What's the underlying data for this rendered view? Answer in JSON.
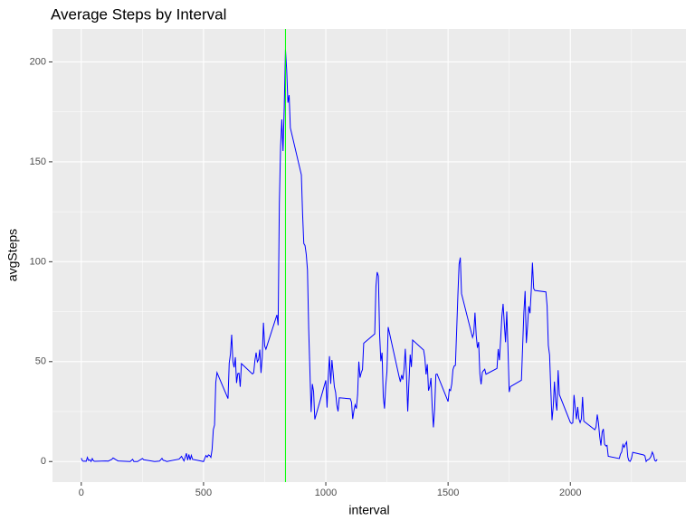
{
  "chart_data": {
    "type": "line",
    "title": "Average Steps by Interval",
    "xlabel": "interval",
    "ylabel": "avgSteps",
    "x": [
      0,
      5,
      10,
      15,
      20,
      25,
      30,
      35,
      40,
      45,
      50,
      55,
      100,
      110,
      125,
      130,
      150,
      200,
      210,
      215,
      230,
      250,
      255,
      300,
      320,
      330,
      335,
      340,
      350,
      400,
      410,
      420,
      430,
      435,
      440,
      445,
      450,
      455,
      500,
      505,
      510,
      515,
      520,
      525,
      530,
      535,
      540,
      545,
      550,
      555,
      600,
      605,
      610,
      615,
      620,
      625,
      630,
      635,
      640,
      645,
      650,
      655,
      700,
      705,
      710,
      715,
      720,
      725,
      730,
      735,
      740,
      745,
      750,
      755,
      800,
      805,
      810,
      815,
      820,
      825,
      830,
      835,
      840,
      845,
      850,
      855,
      900,
      905,
      910,
      915,
      920,
      925,
      930,
      935,
      940,
      945,
      950,
      955,
      1000,
      1005,
      1010,
      1015,
      1020,
      1025,
      1030,
      1035,
      1040,
      1045,
      1050,
      1055,
      1100,
      1105,
      1110,
      1115,
      1120,
      1125,
      1130,
      1135,
      1140,
      1145,
      1150,
      1155,
      1200,
      1205,
      1210,
      1215,
      1220,
      1225,
      1230,
      1235,
      1240,
      1245,
      1250,
      1255,
      1300,
      1305,
      1310,
      1315,
      1320,
      1325,
      1330,
      1335,
      1340,
      1345,
      1350,
      1355,
      1400,
      1405,
      1410,
      1415,
      1420,
      1425,
      1430,
      1435,
      1440,
      1445,
      1450,
      1455,
      1500,
      1505,
      1510,
      1515,
      1520,
      1525,
      1530,
      1535,
      1540,
      1545,
      1550,
      1555,
      1600,
      1605,
      1610,
      1615,
      1620,
      1625,
      1630,
      1635,
      1640,
      1645,
      1650,
      1655,
      1700,
      1705,
      1710,
      1715,
      1720,
      1725,
      1730,
      1735,
      1740,
      1745,
      1750,
      1755,
      1800,
      1805,
      1810,
      1815,
      1820,
      1825,
      1830,
      1835,
      1840,
      1845,
      1850,
      1855,
      1900,
      1905,
      1910,
      1915,
      1920,
      1925,
      1930,
      1935,
      1940,
      1945,
      1950,
      1955,
      2000,
      2005,
      2010,
      2015,
      2020,
      2025,
      2030,
      2035,
      2040,
      2045,
      2050,
      2055,
      2100,
      2105,
      2110,
      2115,
      2120,
      2125,
      2130,
      2135,
      2140,
      2145,
      2150,
      2155,
      2200,
      2205,
      2210,
      2215,
      2220,
      2225,
      2230,
      2235,
      2240,
      2245,
      2250,
      2255,
      2300,
      2305,
      2310,
      2315,
      2320,
      2325,
      2330,
      2335,
      2340,
      2345,
      2350,
      2355
    ],
    "values": [
      1.7,
      0.3,
      0.1,
      0.2,
      0.1,
      2.1,
      0.5,
      0.9,
      0,
      1.5,
      0.3,
      0.1,
      0.3,
      0.2,
      1.1,
      1.8,
      0.3,
      0,
      1.1,
      0,
      0,
      1.5,
      0.9,
      0,
      0.2,
      1.6,
      0.6,
      0.5,
      0,
      1.2,
      2.6,
      0.3,
      4.1,
      0.7,
      3.5,
      0.8,
      3.1,
      1.1,
      0,
      1.6,
      3,
      2.2,
      3.3,
      3,
      2.1,
      6.1,
      16,
      18.3,
      39.5,
      44.5,
      31.5,
      49.3,
      53.8,
      63.5,
      50,
      47.1,
      52.2,
      39.3,
      44,
      44.2,
      37.4,
      49,
      43.8,
      44.4,
      50.5,
      54.5,
      49.9,
      51,
      56,
      44.3,
      52.3,
      69.5,
      57.8,
      56.2,
      73.4,
      68.2,
      129.4,
      157.5,
      171.2,
      155.4,
      177.3,
      206.2,
      195.9,
      179.6,
      183.4,
      167,
      143.5,
      124,
      109.1,
      108.1,
      103.7,
      95.9,
      66.2,
      45.2,
      24.8,
      38.8,
      35,
      21.1,
      40.6,
      27,
      42.4,
      52.7,
      38.9,
      50.8,
      44.3,
      37.4,
      34.7,
      28.3,
      25.1,
      31.9,
      31.4,
      29.7,
      21.3,
      25.5,
      28.4,
      26.5,
      33.4,
      50,
      42,
      44.6,
      46,
      59.2,
      63.9,
      87.7,
      94.8,
      92.8,
      63.4,
      50.2,
      54.5,
      32.4,
      26.5,
      37.7,
      45.1,
      67.3,
      42.3,
      39.9,
      43.3,
      41,
      46.2,
      56.4,
      42.8,
      25.1,
      40,
      53.5,
      47.3,
      60.8,
      55.8,
      52,
      43.6,
      48.7,
      35.5,
      37.5,
      41.8,
      27.5,
      17.1,
      26.1,
      43.6,
      43.8,
      30,
      36.1,
      35.5,
      38.8,
      46,
      47.8,
      48.1,
      65.3,
      82.9,
      98.7,
      102.1,
      84,
      62.1,
      64.1,
      74.5,
      63.2,
      56.9,
      59.8,
      43.9,
      38.6,
      44.7,
      45.5,
      46.2,
      43.7,
      46.6,
      56.3,
      50.7,
      61.2,
      72.7,
      78.9,
      68.9,
      59.7,
      75.1,
      56.5,
      34.8,
      37.5,
      40.7,
      58,
      74.7,
      85.3,
      59.3,
      67.8,
      77.7,
      74.2,
      85.3,
      99.5,
      86.6,
      85.6,
      84.9,
      77.8,
      58,
      53.4,
      36.3,
      20.7,
      27.4,
      40,
      30.2,
      25.5,
      45.7,
      33.5,
      19.6,
      19,
      19.3,
      33.3,
      26.8,
      21.2,
      27.3,
      21.3,
      19.5,
      21.3,
      32.3,
      20.2,
      15.9,
      17.2,
      23.5,
      19.2,
      12.5,
      8,
      14.7,
      16.3,
      8.7,
      7.8,
      8.1,
      2.6,
      1.5,
      3.7,
      4.8,
      8.5,
      7.1,
      8.7,
      9.8,
      2.2,
      0.3,
      0.1,
      1.6,
      4.6,
      3.3,
      2.8,
      0,
      0.8,
      1,
      1.6,
      2.6,
      4.7,
      3.3,
      0.6,
      0.2,
      1.1
    ],
    "color": "#0000ff",
    "vline": 835,
    "vline_color": "#00ff00",
    "xlim": [
      -117.75,
      2472.75
    ],
    "xticks": [
      0,
      500,
      1000,
      1500,
      2000
    ],
    "ylim": [
      -10.3,
      216.5
    ],
    "yticks": [
      0,
      50,
      100,
      150,
      200
    ],
    "grid": true
  }
}
